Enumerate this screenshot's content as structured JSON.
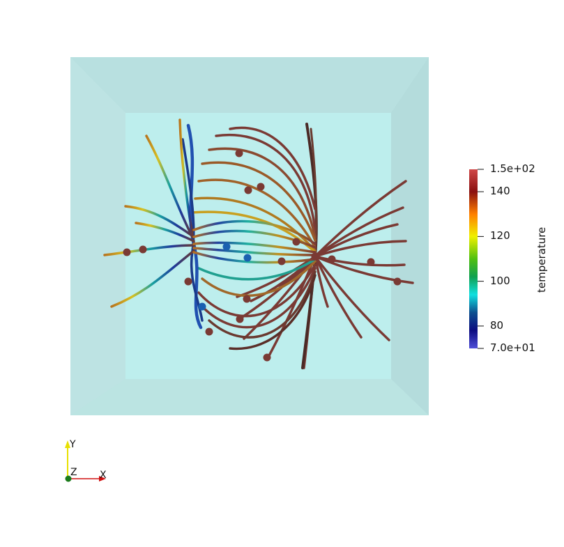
{
  "colorbar": {
    "title": "temperature",
    "range": [
      70,
      150
    ],
    "labels": [
      "1.5e+02",
      "140",
      "120",
      "100",
      "80",
      "7.0e+01"
    ],
    "label_values": [
      150,
      140,
      120,
      100,
      80,
      70
    ],
    "colormap_stops": [
      {
        "t": 0.0,
        "color": "#4f4fd8"
      },
      {
        "t": 0.1,
        "color": "#0c0c80"
      },
      {
        "t": 0.2,
        "color": "#0d4f8f"
      },
      {
        "t": 0.3,
        "color": "#10e0e0"
      },
      {
        "t": 0.4,
        "color": "#10a050"
      },
      {
        "t": 0.5,
        "color": "#50c010"
      },
      {
        "t": 0.625,
        "color": "#f0f000"
      },
      {
        "t": 0.75,
        "color": "#ff7f00"
      },
      {
        "t": 0.875,
        "color": "#8a1010"
      },
      {
        "t": 1.0,
        "color": "#d04848"
      }
    ]
  },
  "axes": {
    "x_label": "X",
    "y_label": "Y",
    "z_label": "Z"
  },
  "colors": {
    "box_face": "#b8e0e0",
    "box_inner": "#bdeeed",
    "stream_hot": "#7a3a34",
    "stream_cool": "#1f3a8a"
  }
}
